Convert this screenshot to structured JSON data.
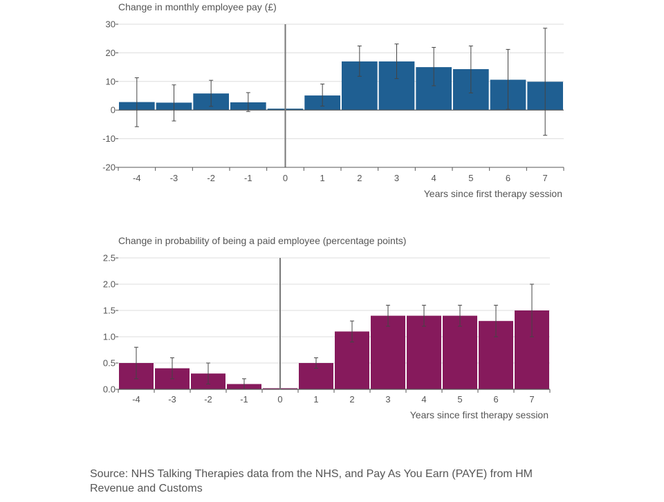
{
  "chart_data": [
    {
      "type": "bar",
      "title": "Change in monthly employee pay (£)",
      "xlabel": "Years since first therapy session",
      "ylabel": "",
      "color": "#1f5f92",
      "categories": [
        "-4",
        "-3",
        "-2",
        "-1",
        "0",
        "1",
        "2",
        "3",
        "4",
        "5",
        "6",
        "7"
      ],
      "values": [
        2.8,
        2.6,
        5.8,
        2.7,
        0.5,
        5.1,
        17.0,
        17.0,
        15.0,
        14.3,
        10.6,
        9.9
      ],
      "error_low": [
        -5.8,
        -3.8,
        1.3,
        -0.5,
        null,
        1.4,
        11.8,
        11.0,
        8.5,
        6.0,
        0.3,
        -8.8
      ],
      "error_high": [
        11.3,
        8.8,
        10.4,
        6.1,
        null,
        9.1,
        22.4,
        23.1,
        21.9,
        22.4,
        21.2,
        28.6
      ],
      "ylim": [
        -20,
        30
      ],
      "yticks": [
        -20,
        -10,
        0,
        10,
        20,
        30
      ],
      "ytick_labels": [
        "-20",
        "-10",
        "0",
        "10",
        "20",
        "30"
      ],
      "grid": true
    },
    {
      "type": "bar",
      "title": "Change in probability of being a paid employee (percentage points)",
      "xlabel": "Years since first therapy session",
      "ylabel": "",
      "color": "#861a5c",
      "categories": [
        "-4",
        "-3",
        "-2",
        "-1",
        "0",
        "1",
        "2",
        "3",
        "4",
        "5",
        "6",
        "7"
      ],
      "values": [
        0.5,
        0.4,
        0.3,
        0.1,
        0.02,
        0.5,
        1.1,
        1.4,
        1.4,
        1.4,
        1.3,
        1.5
      ],
      "error_low": [
        0.2,
        0.2,
        0.1,
        0.0,
        null,
        0.4,
        0.9,
        1.2,
        1.2,
        1.2,
        1.0,
        1.0
      ],
      "error_high": [
        0.8,
        0.6,
        0.5,
        0.2,
        null,
        0.6,
        1.3,
        1.6,
        1.6,
        1.6,
        1.6,
        2.0
      ],
      "ylim": [
        0,
        2.5
      ],
      "yticks": [
        0,
        0.5,
        1.0,
        1.5,
        2.0,
        2.5
      ],
      "ytick_labels": [
        "0.0",
        "0.5",
        "1.0",
        "1.5",
        "2.0",
        "2.5"
      ],
      "grid": true
    }
  ],
  "source": "Source: NHS Talking Therapies data from the NHS, and Pay As You Earn (PAYE) from HM Revenue and Customs"
}
